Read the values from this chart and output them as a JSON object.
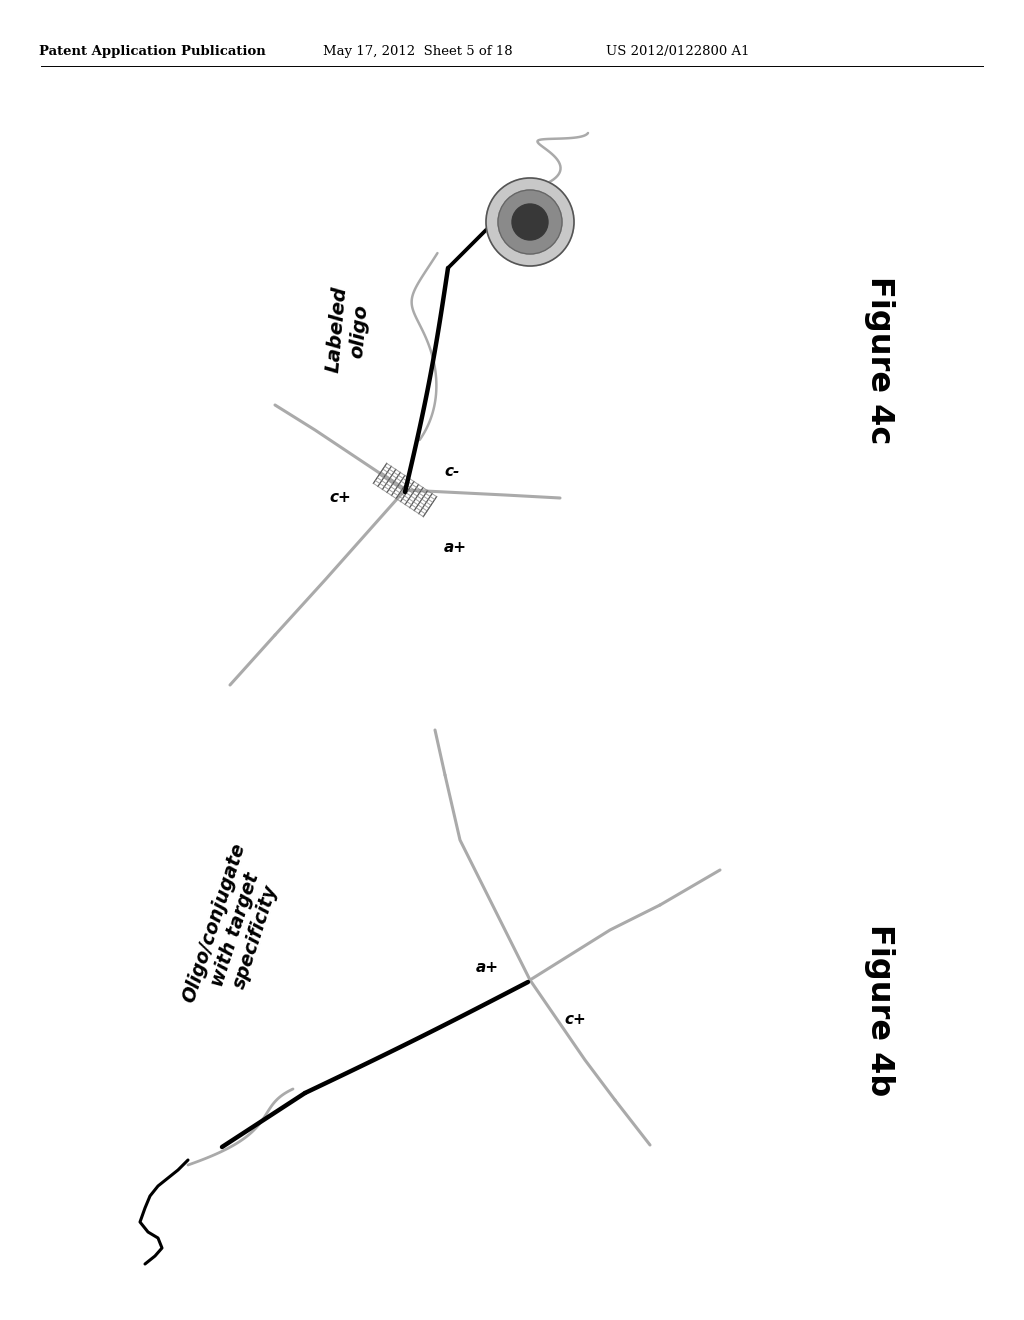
{
  "bg_color": "#ffffff",
  "header_text": "Patent Application Publication",
  "header_date": "May 17, 2012  Sheet 5 of 18",
  "header_patent": "US 2012/0122800 A1",
  "fig4c_label": "Figure 4c",
  "fig4c_labeled_oligo": "Labeled\noligo",
  "fig4c_cp": "c+",
  "fig4c_cm": "c-",
  "fig4c_ap": "a+",
  "fig4b_label": "Figure 4b",
  "fig4b_label_text": "Oligo/conjugate\nwith target\nspecificity",
  "fig4b_ap": "a+",
  "fig4b_cp": "c+",
  "arm_color": "#aaaaaa",
  "arm_lw": 2.2,
  "strand_color": "#000000",
  "strand_lw": 3.2,
  "hatch_color": "#666666",
  "gray_strand_color": "#bbbbbb",
  "gray_strand_lw": 1.8
}
